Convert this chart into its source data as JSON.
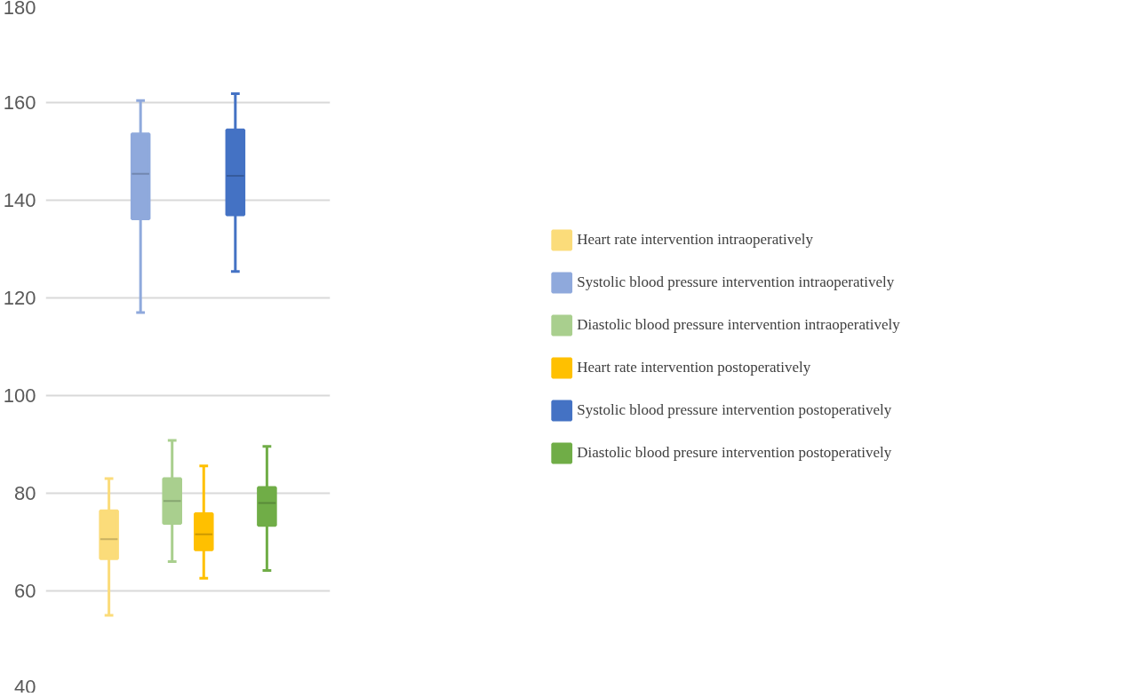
{
  "chart_data": {
    "type": "box",
    "categories": [
      null
    ],
    "ylim": [
      40,
      180
    ],
    "yticks": [
      40,
      60,
      80,
      100,
      120,
      140,
      160,
      180
    ],
    "grid": "y",
    "legend": "right",
    "tick_labels": "y",
    "series": [
      {
        "name": "Heart rate intervention intraoperatively",
        "color": "#fbdc7a",
        "boxes": [
          {
            "low": 55,
            "q1": 66.6,
            "median": 70.6,
            "q3": 76.4,
            "high": 83
          }
        ]
      },
      {
        "name": "Systolic blood pressure intervention intraoperatively",
        "color": "#8fa9dc",
        "boxes": [
          {
            "low": 117,
            "q1": 136.2,
            "median": 145.4,
            "q3": 153.6,
            "high": 160.4
          }
        ]
      },
      {
        "name": "Diastolic blood pressure intervention intraoperatively",
        "color": "#a9cf8e",
        "boxes": [
          {
            "low": 66,
            "q1": 73.8,
            "median": 78.4,
            "q3": 83,
            "high": 90.8
          }
        ]
      },
      {
        "name": "Heart rate intervention postoperatively",
        "color": "#ffc000",
        "boxes": [
          {
            "low": 62.6,
            "q1": 68.4,
            "median": 71.6,
            "q3": 75.8,
            "high": 85.6
          }
        ]
      },
      {
        "name": "Systolic blood pressure intervention postoperatively",
        "color": "#4472c4",
        "boxes": [
          {
            "low": 125.4,
            "q1": 137,
            "median": 145,
            "q3": 154.4,
            "high": 161.8
          }
        ]
      },
      {
        "name": "Diastolic blood presure intervention postoperatively",
        "color": "#70ad47",
        "boxes": [
          {
            "low": 64.2,
            "q1": 73.4,
            "median": 78,
            "q3": 81.2,
            "high": 89.6
          }
        ]
      }
    ]
  }
}
